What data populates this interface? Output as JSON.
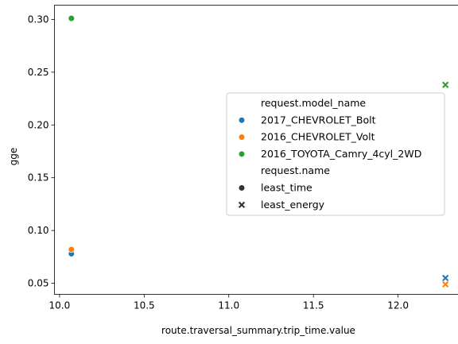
{
  "chart_data": {
    "type": "scatter",
    "title": "",
    "xlabel": "route.traversal_summary.trip_time.value",
    "ylabel": "gge",
    "xlim": [
      9.97,
      12.38
    ],
    "ylim": [
      0.0395,
      0.3135
    ],
    "xticks": [
      "10.0",
      "10.5",
      "11.0",
      "11.5",
      "12.0"
    ],
    "yticks": [
      "0.05",
      "0.10",
      "0.15",
      "0.20",
      "0.25",
      "0.30"
    ],
    "grid": false,
    "legend": {
      "placement": "center-right",
      "hue_title": "request.model_name",
      "style_title": "request.name",
      "hue_entries": [
        {
          "label": "2017_CHEVROLET_Bolt",
          "color": "#1f77b4"
        },
        {
          "label": "2016_CHEVROLET_Volt",
          "color": "#ff7f0e"
        },
        {
          "label": "2016_TOYOTA_Camry_4cyl_2WD",
          "color": "#2ca02c"
        }
      ],
      "style_entries": [
        {
          "label": "least_time",
          "marker": "circle"
        },
        {
          "label": "least_energy",
          "marker": "x"
        }
      ]
    },
    "series": [
      {
        "model": "2017_CHEVROLET_Bolt",
        "color": "#1f77b4",
        "points": [
          {
            "x": 10.07,
            "y": 0.078,
            "marker": "circle"
          },
          {
            "x": 12.28,
            "y": 0.055,
            "marker": "x"
          }
        ]
      },
      {
        "model": "2016_CHEVROLET_Volt",
        "color": "#ff7f0e",
        "points": [
          {
            "x": 10.07,
            "y": 0.082,
            "marker": "circle"
          },
          {
            "x": 12.28,
            "y": 0.049,
            "marker": "x"
          }
        ]
      },
      {
        "model": "2016_TOYOTA_Camry_4cyl_2WD",
        "color": "#2ca02c",
        "points": [
          {
            "x": 10.07,
            "y": 0.301,
            "marker": "circle"
          },
          {
            "x": 12.28,
            "y": 0.238,
            "marker": "x"
          }
        ]
      }
    ]
  }
}
